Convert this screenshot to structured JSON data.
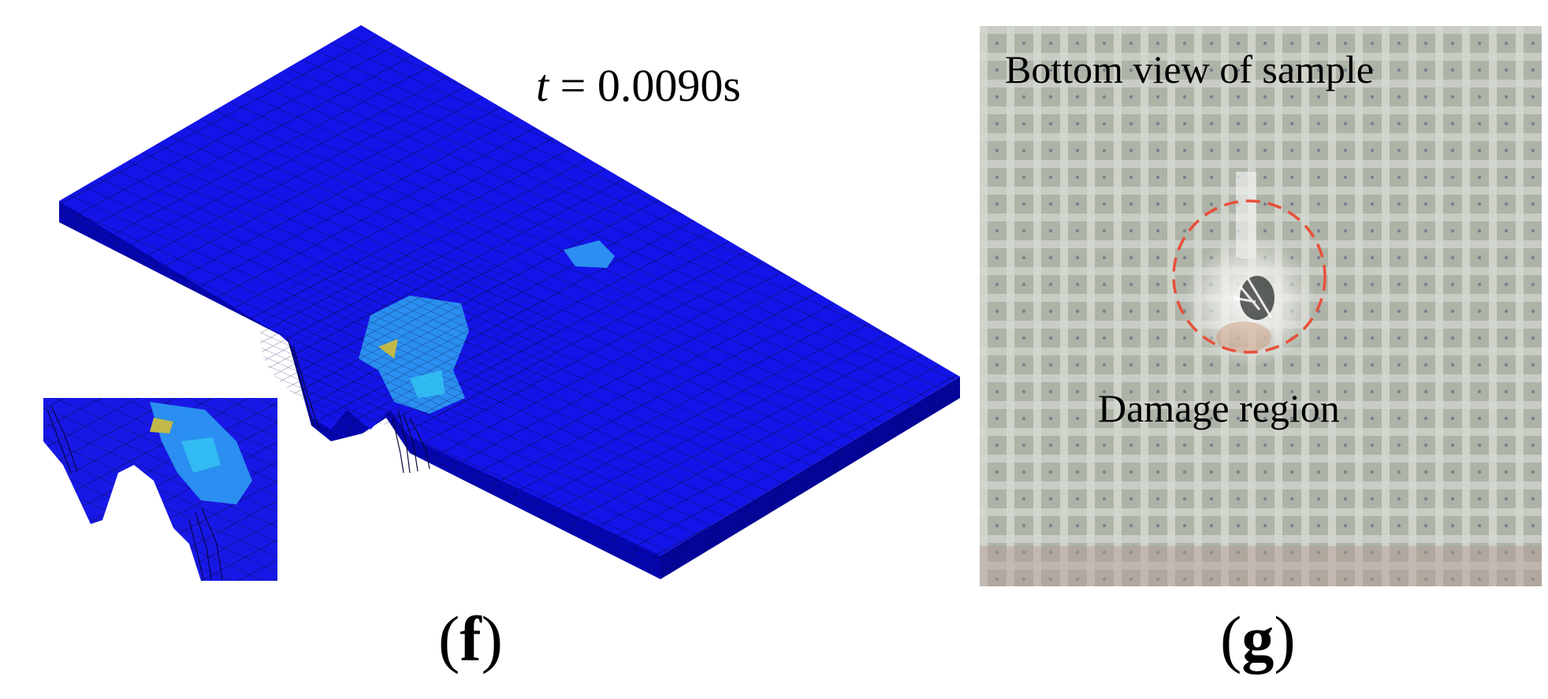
{
  "panel_f": {
    "time_var": "t",
    "time_eq": " = 0.0090s",
    "label": "f"
  },
  "panel_g": {
    "title": "Bottom view of  sample",
    "annotation": "Damage region",
    "label": "g"
  },
  "colors": {
    "mesh_blue": "#1010e6",
    "damage_light": "#2a90f0",
    "circle": "#e8503a",
    "photo_bg": "#b5b9ae"
  }
}
